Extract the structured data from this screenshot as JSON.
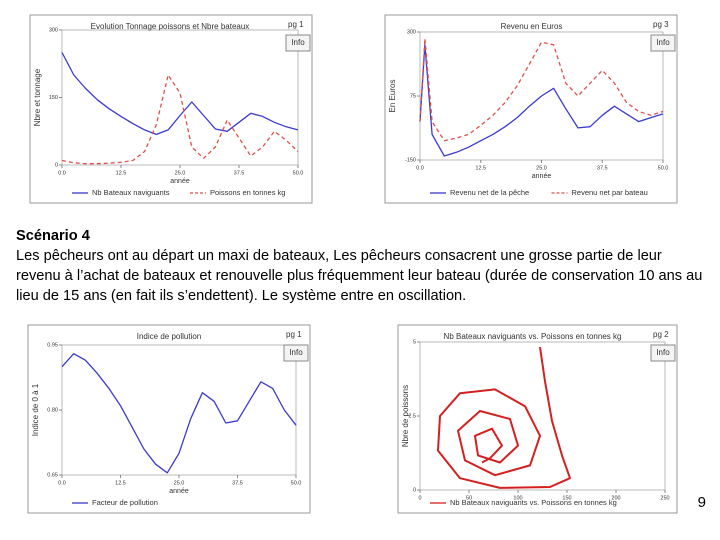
{
  "chart_data": [
    {
      "type": "line",
      "title": "Evolution Tonnage poissons et Nbre bateaux",
      "page_label": "pg 1",
      "button": "Info",
      "y_label": "Nbre et tonnage",
      "x_label": "année",
      "x": [
        0,
        2.5,
        5,
        7.5,
        10,
        12.5,
        15,
        17.5,
        20,
        22.5,
        25,
        27.5,
        30,
        32.5,
        35,
        37.5,
        40,
        42.5,
        45,
        47.5,
        50
      ],
      "xlim": [
        0,
        50
      ],
      "xticks": [
        {
          "value": 0,
          "label": "0.0"
        },
        12.5,
        {
          "value": 25,
          "label": "25.0"
        },
        37.5,
        {
          "value": 50,
          "label": "50.0"
        }
      ],
      "ylim": [
        0,
        300
      ],
      "yticks": [
        0,
        150,
        300
      ],
      "series": [
        {
          "name": "Nb Bateaux naviguants",
          "color": "#3a3ad0",
          "dashed": false,
          "values": [
            250,
            200,
            170,
            145,
            125,
            108,
            92,
            78,
            68,
            78,
            110,
            140,
            110,
            80,
            75,
            95,
            115,
            108,
            95,
            85,
            78
          ]
        },
        {
          "name": "Poissons en tonnes kg",
          "color": "#e0504a",
          "dashed": true,
          "values": [
            10,
            5,
            3,
            3,
            4,
            6,
            10,
            30,
            90,
            200,
            160,
            40,
            15,
            40,
            100,
            60,
            20,
            40,
            75,
            55,
            30
          ]
        }
      ]
    },
    {
      "type": "line",
      "title": "Revenu en Euros",
      "page_label": "pg 3",
      "button": "Info",
      "y_label": "En Euros",
      "x_label": "année",
      "x": [
        0,
        1,
        2.5,
        5,
        7.5,
        10,
        12.5,
        15,
        17.5,
        20,
        22.5,
        25,
        27.5,
        30,
        32.5,
        35,
        37.5,
        40,
        42.5,
        45,
        47.5,
        50
      ],
      "xlim": [
        0,
        50
      ],
      "xticks": [
        {
          "value": 0,
          "label": "0.0"
        },
        12.5,
        {
          "value": 25,
          "label": "25.0"
        },
        37.5,
        {
          "value": 50,
          "label": "50.0"
        }
      ],
      "ylim": [
        -150,
        300
      ],
      "yticks": [
        -150,
        75,
        300
      ],
      "series": [
        {
          "name": "Revenu net de la pêche",
          "color": "#3a3ad0",
          "dashed": false,
          "values": [
            -15,
            255,
            -60,
            -136,
            -123,
            -105,
            -82,
            -60,
            -33,
            -1,
            39,
            75,
            102,
            30,
            -37,
            -33,
            7,
            39,
            12,
            -15,
            -1,
            12
          ]
        },
        {
          "name": "Revenu net par bateau",
          "color": "#e0504a",
          "dashed": true,
          "values": [
            -15,
            277,
            -15,
            -82,
            -73,
            -60,
            -28,
            7,
            52,
            111,
            187,
            264,
            255,
            120,
            75,
            120,
            165,
            120,
            52,
            21,
            7,
            21
          ]
        }
      ]
    },
    {
      "type": "line",
      "title": "Indice de pollution",
      "page_label": "pg 1",
      "button": "Info",
      "y_label": "Indice de 0 à 1",
      "x_label": "année",
      "x": [
        0,
        2.5,
        5,
        7.5,
        10,
        12.5,
        15,
        17.5,
        20,
        22.5,
        25,
        27.5,
        30,
        32.5,
        35,
        37.5,
        40,
        42.5,
        45,
        47.5,
        50
      ],
      "xlim": [
        0,
        50
      ],
      "xticks": [
        {
          "value": 0,
          "label": "0.0"
        },
        12.5,
        {
          "value": 25,
          "label": "25.0"
        },
        37.5,
        {
          "value": 50,
          "label": "50.0"
        }
      ],
      "ylim": [
        0.65,
        0.95
      ],
      "yticks": [
        0.65,
        {
          "value": 0.8,
          "label": "0.80"
        },
        0.95
      ],
      "series": [
        {
          "name": "Facteur de pollution",
          "color": "#3a3ad0",
          "dashed": false,
          "values": [
            0.9,
            0.93,
            0.915,
            0.885,
            0.85,
            0.81,
            0.76,
            0.71,
            0.675,
            0.655,
            0.7,
            0.78,
            0.84,
            0.82,
            0.77,
            0.775,
            0.82,
            0.865,
            0.85,
            0.8,
            0.765
          ]
        }
      ]
    },
    {
      "type": "line",
      "title": "Nb Bateaux naviguants vs. Poissons en tonnes kg",
      "page_label": "pg 2",
      "button": "Info",
      "y_label": "Nbre de poissons",
      "x": [
        122.4,
        127.6,
        134.7,
        144.9,
        153.1,
        132.7,
        81.6,
        40.8,
        18.4,
        20.4,
        40.8,
        76.5,
        107.1,
        122.4,
        112.2,
        76.5,
        45.9,
        38.8,
        61.2,
        91.8,
        100,
        81.6,
        59.2,
        56.1,
        73.5,
        83.7,
        71.4,
        63.3
      ],
      "xlim": [
        0,
        250
      ],
      "xticks": [
        0,
        50,
        100,
        150,
        200,
        250
      ],
      "ylim": [
        0,
        5
      ],
      "yticks": [
        0,
        2.5,
        5
      ],
      "series": [
        {
          "name": "Nb Bateaux naviguants vs. Poissons en tonnes kg",
          "color": "#d42020",
          "dashed": false,
          "values": [
            4.83,
            3.67,
            2.33,
            1.17,
            0.4,
            0.1,
            0.07,
            0.4,
            1.33,
            2.5,
            3.27,
            3.4,
            2.83,
            1.83,
            0.83,
            0.5,
            1.0,
            2.0,
            2.67,
            2.4,
            1.5,
            0.93,
            1.17,
            1.83,
            2.07,
            1.5,
            1.07,
            0.93
          ]
        }
      ]
    }
  ],
  "text": {
    "heading": "Scénario 4",
    "paragraph": "Les pêcheurs ont au départ un maxi de bateaux, Les pêcheurs consacrent une grosse partie de leur revenu à l’achat de bateaux et renouvelle plus fréquemment leur bateau (durée de conservation 10 ans au lieu de 15 ans (en fait ils s’endettent). Le système entre en oscillation.",
    "page_number": "9"
  }
}
